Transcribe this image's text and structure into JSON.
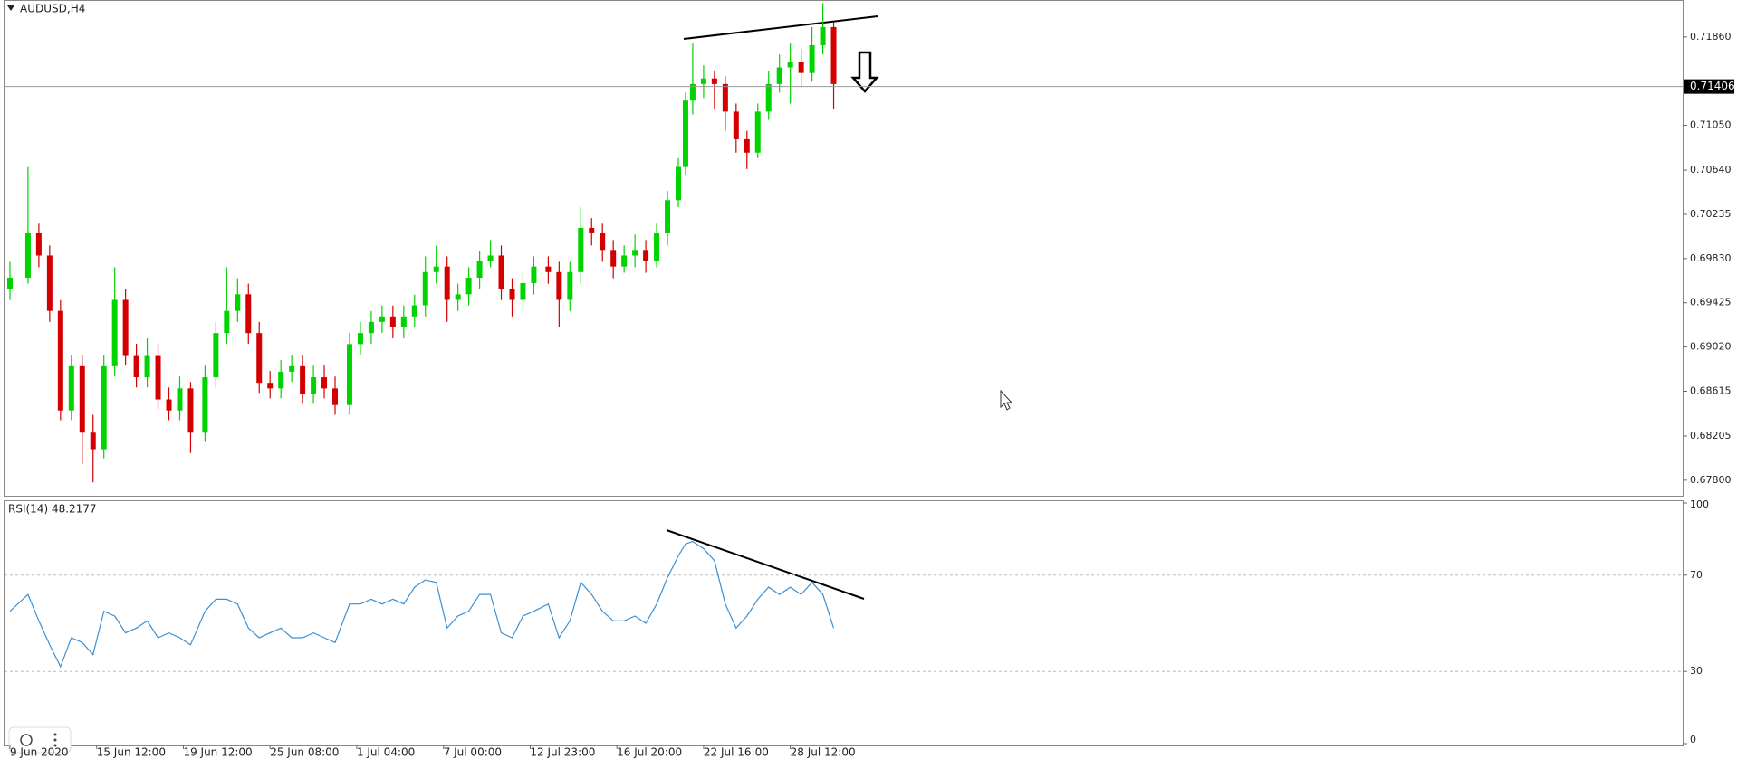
{
  "chart_data": [
    {
      "type": "candlestick",
      "title": "AUDUSD,H4",
      "x": [
        0,
        5,
        8,
        11,
        14,
        17,
        20,
        23,
        26,
        29,
        32,
        35,
        38,
        41,
        44,
        47,
        50,
        54,
        57,
        60,
        63,
        66,
        69,
        72,
        75,
        78,
        81,
        84,
        87,
        90,
        94,
        97,
        100,
        103,
        106,
        109,
        112,
        115,
        118,
        121,
        124,
        127,
        130,
        133,
        136,
        139,
        142,
        145,
        149,
        152,
        155,
        158,
        161,
        164,
        167,
        170,
        173,
        176,
        179,
        182,
        185,
        187,
        189,
        192,
        195,
        198,
        201,
        204,
        207,
        210,
        213,
        216,
        219,
        222,
        225,
        228
      ],
      "ohlc": [
        [
          0.6955,
          0.698,
          0.6945,
          0.69655
        ],
        [
          0.69655,
          0.70669,
          0.696,
          0.70061
        ],
        [
          0.70061,
          0.7015,
          0.6975,
          0.69858
        ],
        [
          0.69858,
          0.6995,
          0.6925,
          0.69351
        ],
        [
          0.69351,
          0.6945,
          0.6835,
          0.68439
        ],
        [
          0.68439,
          0.6895,
          0.6835,
          0.68844
        ],
        [
          0.68844,
          0.6895,
          0.6795,
          0.68236
        ],
        [
          0.68236,
          0.684,
          0.6778,
          0.68084
        ],
        [
          0.68084,
          0.6895,
          0.68,
          0.68844
        ],
        [
          0.68844,
          0.6975,
          0.6875,
          0.69452
        ],
        [
          0.69452,
          0.6955,
          0.6885,
          0.68946
        ],
        [
          0.68946,
          0.6905,
          0.6865,
          0.68743
        ],
        [
          0.68743,
          0.691,
          0.6865,
          0.68946
        ],
        [
          0.68946,
          0.6905,
          0.6845,
          0.6854
        ],
        [
          0.6854,
          0.6865,
          0.6835,
          0.68439
        ],
        [
          0.68439,
          0.6875,
          0.6835,
          0.68641
        ],
        [
          0.68641,
          0.687,
          0.6805,
          0.68236
        ],
        [
          0.68236,
          0.6885,
          0.6815,
          0.68743
        ],
        [
          0.68743,
          0.6925,
          0.6865,
          0.69148
        ],
        [
          0.69148,
          0.6975,
          0.6905,
          0.69351
        ],
        [
          0.69351,
          0.6965,
          0.6925,
          0.69503
        ],
        [
          0.69503,
          0.696,
          0.6905,
          0.69148
        ],
        [
          0.69148,
          0.6925,
          0.686,
          0.68692
        ],
        [
          0.68692,
          0.688,
          0.6855,
          0.68641
        ],
        [
          0.68641,
          0.689,
          0.6855,
          0.68794
        ],
        [
          0.68794,
          0.6895,
          0.687,
          0.68844
        ],
        [
          0.68844,
          0.6895,
          0.685,
          0.68591
        ],
        [
          0.68591,
          0.6885,
          0.685,
          0.68743
        ],
        [
          0.68743,
          0.6885,
          0.6855,
          0.68641
        ],
        [
          0.68641,
          0.6875,
          0.684,
          0.68489
        ],
        [
          0.68489,
          0.6915,
          0.684,
          0.69047
        ],
        [
          0.69047,
          0.6925,
          0.6895,
          0.69148
        ],
        [
          0.69148,
          0.6935,
          0.6905,
          0.6925
        ],
        [
          0.6925,
          0.694,
          0.6915,
          0.693
        ],
        [
          0.693,
          0.694,
          0.691,
          0.69199
        ],
        [
          0.69199,
          0.694,
          0.691,
          0.693
        ],
        [
          0.693,
          0.695,
          0.692,
          0.69402
        ],
        [
          0.69402,
          0.6985,
          0.693,
          0.69706
        ],
        [
          0.69706,
          0.6995,
          0.696,
          0.69757
        ],
        [
          0.69757,
          0.6985,
          0.6925,
          0.69452
        ],
        [
          0.69452,
          0.696,
          0.6935,
          0.69503
        ],
        [
          0.69503,
          0.6975,
          0.694,
          0.69655
        ],
        [
          0.69655,
          0.699,
          0.6955,
          0.69807
        ],
        [
          0.69807,
          0.7,
          0.6975,
          0.69858
        ],
        [
          0.69858,
          0.6995,
          0.6945,
          0.69554
        ],
        [
          0.69554,
          0.6965,
          0.693,
          0.69452
        ],
        [
          0.69452,
          0.697,
          0.6935,
          0.69605
        ],
        [
          0.69605,
          0.6985,
          0.695,
          0.69757
        ],
        [
          0.69757,
          0.6985,
          0.696,
          0.69706
        ],
        [
          0.69706,
          0.698,
          0.692,
          0.69452
        ],
        [
          0.69452,
          0.698,
          0.6935,
          0.69706
        ],
        [
          0.69706,
          0.703,
          0.696,
          0.70111
        ],
        [
          0.70111,
          0.702,
          0.6995,
          0.70061
        ],
        [
          0.70061,
          0.7015,
          0.698,
          0.69909
        ],
        [
          0.69909,
          0.7,
          0.6965,
          0.69757
        ],
        [
          0.69757,
          0.6995,
          0.697,
          0.69858
        ],
        [
          0.69858,
          0.7005,
          0.6975,
          0.69909
        ],
        [
          0.69909,
          0.7,
          0.697,
          0.69807
        ],
        [
          0.69807,
          0.7015,
          0.6975,
          0.70061
        ],
        [
          0.70061,
          0.7045,
          0.6995,
          0.70365
        ],
        [
          0.70365,
          0.7075,
          0.703,
          0.70669
        ],
        [
          0.70669,
          0.7135,
          0.706,
          0.71277
        ],
        [
          0.71277,
          0.718,
          0.7115,
          0.71429
        ],
        [
          0.71429,
          0.716,
          0.713,
          0.7148
        ],
        [
          0.7148,
          0.7155,
          0.712,
          0.71429
        ],
        [
          0.71429,
          0.715,
          0.71,
          0.71176
        ],
        [
          0.71176,
          0.7125,
          0.708,
          0.70923
        ],
        [
          0.70923,
          0.71,
          0.7065,
          0.708
        ],
        [
          0.708,
          0.7125,
          0.7075,
          0.71176
        ],
        [
          0.71176,
          0.7155,
          0.711,
          0.71429
        ],
        [
          0.71429,
          0.717,
          0.7135,
          0.71581
        ],
        [
          0.71581,
          0.718,
          0.7125,
          0.71632
        ],
        [
          0.71632,
          0.7175,
          0.714,
          0.7153
        ],
        [
          0.7153,
          0.7195,
          0.7145,
          0.71784
        ],
        [
          0.71784,
          0.7217,
          0.717,
          0.7195
        ],
        [
          0.7195,
          0.72,
          0.712,
          0.71429
        ]
      ],
      "up_color": "#00d400",
      "down_color": "#d40000",
      "xlim": [
        -1.5,
        463
      ],
      "ylim": [
        0.67658,
        0.7219
      ],
      "yticks": [
        {
          "value": 0.7186,
          "label": "0.71860"
        },
        {
          "value": 0.7105,
          "label": "0.71050"
        },
        {
          "value": 0.7064,
          "label": "0.70640"
        },
        0.70235,
        {
          "value": 0.6983,
          "label": "0.69830"
        },
        0.69425,
        {
          "value": 0.6902,
          "label": "0.69020"
        },
        0.68615,
        0.68205,
        {
          "value": 0.678,
          "label": "0.67800"
        }
      ],
      "price_line": {
        "value": 0.71406,
        "label": "0.71406"
      }
    },
    {
      "type": "line",
      "title": "RSI(14) 48.2177",
      "x": [
        0,
        5,
        8,
        11,
        14,
        17,
        20,
        23,
        26,
        29,
        32,
        35,
        38,
        41,
        44,
        47,
        50,
        54,
        57,
        60,
        63,
        66,
        69,
        72,
        75,
        78,
        81,
        84,
        87,
        90,
        94,
        97,
        100,
        103,
        106,
        109,
        112,
        115,
        118,
        121,
        124,
        127,
        130,
        133,
        136,
        139,
        142,
        145,
        149,
        152,
        155,
        158,
        161,
        164,
        167,
        170,
        173,
        176,
        179,
        182,
        185,
        187,
        189,
        192,
        195,
        198,
        201,
        204,
        207,
        210,
        213,
        216,
        219,
        222,
        225,
        228
      ],
      "values": [
        55,
        62,
        51,
        41,
        32,
        44,
        42,
        37,
        55,
        53,
        46,
        48,
        51,
        44,
        46,
        44,
        41,
        55,
        60,
        60,
        58,
        48,
        44,
        46,
        48,
        44,
        44,
        46,
        44,
        42,
        58,
        58,
        60,
        58,
        60,
        58,
        65,
        68,
        67,
        48,
        53,
        55,
        62,
        62,
        46,
        44,
        53,
        55,
        58,
        44,
        51,
        67,
        62,
        55,
        51,
        51,
        53,
        50,
        58,
        69,
        78,
        83,
        84,
        81,
        76,
        58,
        48,
        53,
        60,
        65,
        62,
        65,
        62,
        67,
        62,
        48
      ],
      "color": "#3d8fd1",
      "xlim": [
        -1.5,
        463
      ],
      "ylim": [
        0,
        100
      ],
      "yticks": [
        0,
        30,
        70,
        100
      ],
      "xticks": [
        {
          "value": 0,
          "label": "9 Jun 2020"
        },
        {
          "value": 24,
          "label": "15 Jun 12:00"
        },
        {
          "value": 48,
          "label": "19 Jun 12:00"
        },
        {
          "value": 72,
          "label": "25 Jun 08:00"
        },
        {
          "value": 96,
          "label": "1 Jul 04:00"
        },
        {
          "value": 120,
          "label": "7 Jul 00:00"
        },
        {
          "value": 144,
          "label": "12 Jul 23:00"
        },
        {
          "value": 168,
          "label": "16 Jul 20:00"
        },
        {
          "value": 192,
          "label": "22 Jul 16:00"
        },
        {
          "value": 216,
          "label": "28 Jul 12:00"
        }
      ]
    }
  ]
}
